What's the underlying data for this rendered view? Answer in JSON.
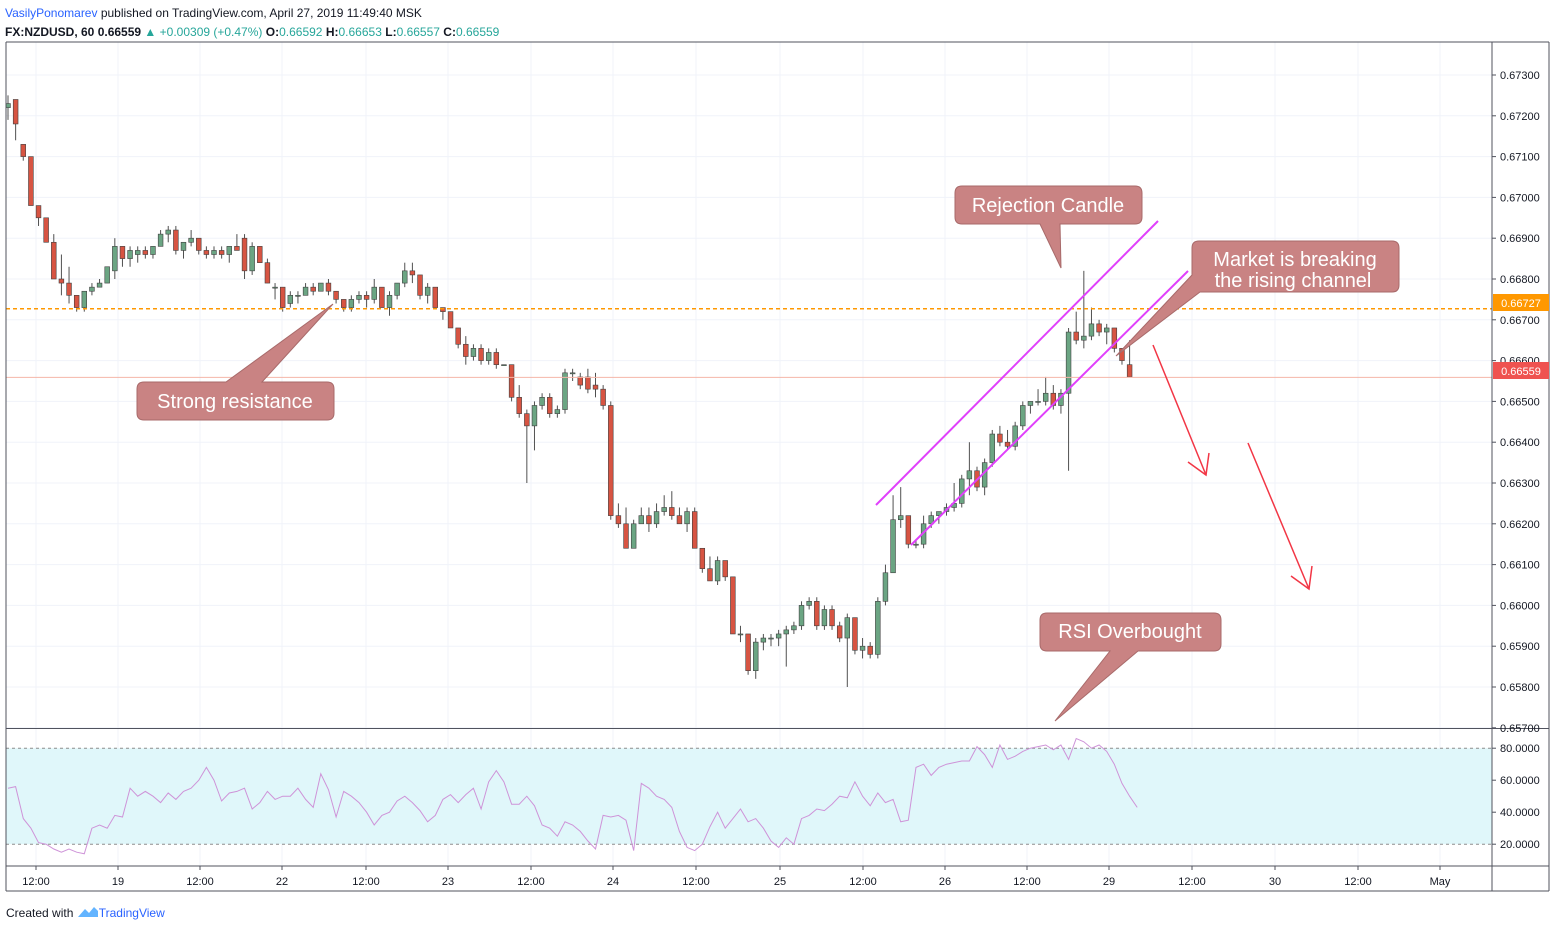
{
  "header": {
    "user": "VasilyPonomarev",
    "published_text": " published on TradingView.com, April 27, 2019 11:49:40 MSK",
    "symbol": "FX:NZDUSD, 60",
    "last": "0.66559",
    "change": "+0.00309 (+0.47%)",
    "o_label": "O:",
    "o_value": "0.66592",
    "h_label": "H:",
    "h_value": "0.66653",
    "l_label": "L:",
    "l_value": "0.66557",
    "c_label": "C:",
    "c_value": "0.66559"
  },
  "footer": {
    "created_with": "Created with",
    "brand": "TradingView"
  },
  "colors": {
    "up_candle": "#6ba583",
    "down_candle": "#d75442",
    "channel": "#e040fb",
    "resistance": "#ff9800",
    "arrow": "#f23645",
    "callout_fill": "#c98383",
    "rsi_line": "#ce93d8",
    "rsi_band": "#e0f7fa"
  },
  "annotations": {
    "strong_resistance": "Strong resistance",
    "rejection_candle": "Rejection Candle",
    "market_breaking_1": "Market is breaking",
    "market_breaking_2": "the rising channel",
    "rsi_overbought": "RSI Overbought"
  },
  "price_tags": {
    "resistance": "0.66727",
    "last": "0.66559"
  },
  "chart_data": [
    {
      "type": "candlestick",
      "title": "FX:NZDUSD, 60",
      "ylim": [
        0.6566,
        0.6736
      ],
      "y_ticks": [
        "0.67300",
        "0.67200",
        "0.67100",
        "0.67000",
        "0.66900",
        "0.66800",
        "0.66700",
        "0.66600",
        "0.66500",
        "0.66400",
        "0.66300",
        "0.66200",
        "0.66100",
        "0.66000",
        "0.65900",
        "0.65800",
        "0.65700"
      ],
      "y_tick_values": [
        0.673,
        0.672,
        0.671,
        0.67,
        0.669,
        0.668,
        0.667,
        0.666,
        0.665,
        0.664,
        0.663,
        0.662,
        0.661,
        0.66,
        0.659,
        0.658,
        0.657
      ],
      "x_ticks": [
        "12:00",
        "19",
        "12:00",
        "22",
        "12:00",
        "23",
        "12:00",
        "24",
        "12:00",
        "25",
        "12:00",
        "26",
        "12:00",
        "29",
        "12:00",
        "30",
        "12:00",
        "May"
      ],
      "resistance_level": 0.66727,
      "last_price": 0.66559,
      "candles": [
        [
          0.6722,
          0.6725,
          0.6719,
          0.6723
        ],
        [
          0.6724,
          0.6724,
          0.6714,
          0.6718
        ],
        [
          0.6713,
          0.6713,
          0.6709,
          0.671
        ],
        [
          0.671,
          0.671,
          0.6698,
          0.6698
        ],
        [
          0.6698,
          0.6698,
          0.6693,
          0.6695
        ],
        [
          0.6695,
          0.6695,
          0.6689,
          0.6689
        ],
        [
          0.6689,
          0.6691,
          0.668,
          0.668
        ],
        [
          0.668,
          0.6686,
          0.6676,
          0.6679
        ],
        [
          0.6679,
          0.6683,
          0.6674,
          0.6676
        ],
        [
          0.6676,
          0.6676,
          0.6672,
          0.6673
        ],
        [
          0.6673,
          0.6677,
          0.6672,
          0.6677
        ],
        [
          0.6677,
          0.6679,
          0.6676,
          0.6678
        ],
        [
          0.6678,
          0.668,
          0.6678,
          0.6679
        ],
        [
          0.6679,
          0.6683,
          0.6679,
          0.6683
        ],
        [
          0.6682,
          0.669,
          0.668,
          0.6688
        ],
        [
          0.6688,
          0.6688,
          0.6683,
          0.6685
        ],
        [
          0.6685,
          0.6688,
          0.6683,
          0.6687
        ],
        [
          0.6686,
          0.6688,
          0.6684,
          0.6687
        ],
        [
          0.6687,
          0.6688,
          0.6685,
          0.6686
        ],
        [
          0.6686,
          0.6688,
          0.6685,
          0.6688
        ],
        [
          0.6688,
          0.6692,
          0.6688,
          0.6691
        ],
        [
          0.6691,
          0.6693,
          0.6689,
          0.6692
        ],
        [
          0.6692,
          0.6693,
          0.6686,
          0.6687
        ],
        [
          0.6687,
          0.6689,
          0.6685,
          0.6689
        ],
        [
          0.6689,
          0.6692,
          0.6688,
          0.669
        ],
        [
          0.669,
          0.669,
          0.6686,
          0.6687
        ],
        [
          0.6687,
          0.6688,
          0.6685,
          0.6686
        ],
        [
          0.6686,
          0.6688,
          0.6685,
          0.6687
        ],
        [
          0.6687,
          0.6688,
          0.6685,
          0.6686
        ],
        [
          0.6686,
          0.6688,
          0.6684,
          0.6688
        ],
        [
          0.6688,
          0.6691,
          0.6687,
          0.6687
        ],
        [
          0.669,
          0.6691,
          0.668,
          0.6682
        ],
        [
          0.6682,
          0.6689,
          0.6681,
          0.6688
        ],
        [
          0.6688,
          0.6688,
          0.6684,
          0.6684
        ],
        [
          0.6684,
          0.6685,
          0.6679,
          0.6679
        ],
        [
          0.6678,
          0.6679,
          0.6675,
          0.6678
        ],
        [
          0.6678,
          0.6678,
          0.6672,
          0.6673
        ],
        [
          0.6674,
          0.6677,
          0.6673,
          0.6676
        ],
        [
          0.6676,
          0.6677,
          0.6674,
          0.6676
        ],
        [
          0.6676,
          0.6679,
          0.6676,
          0.6678
        ],
        [
          0.6678,
          0.6679,
          0.6676,
          0.6677
        ],
        [
          0.6677,
          0.6679,
          0.6677,
          0.6679
        ],
        [
          0.6679,
          0.668,
          0.6676,
          0.6677
        ],
        [
          0.6677,
          0.6677,
          0.6674,
          0.6675
        ],
        [
          0.6675,
          0.6675,
          0.6672,
          0.6673
        ],
        [
          0.6673,
          0.6676,
          0.6672,
          0.6675
        ],
        [
          0.6675,
          0.6677,
          0.6674,
          0.6676
        ],
        [
          0.6676,
          0.6677,
          0.6673,
          0.6675
        ],
        [
          0.6675,
          0.668,
          0.6674,
          0.6678
        ],
        [
          0.6678,
          0.6678,
          0.6673,
          0.6673
        ],
        [
          0.6673,
          0.6677,
          0.6671,
          0.6676
        ],
        [
          0.6676,
          0.6679,
          0.6675,
          0.6679
        ],
        [
          0.6679,
          0.6684,
          0.6678,
          0.6682
        ],
        [
          0.6682,
          0.6684,
          0.6679,
          0.6681
        ],
        [
          0.6681,
          0.6681,
          0.6675,
          0.6676
        ],
        [
          0.6676,
          0.6679,
          0.6674,
          0.6678
        ],
        [
          0.6678,
          0.6678,
          0.6673,
          0.6673
        ],
        [
          0.6673,
          0.6673,
          0.667,
          0.6672
        ],
        [
          0.6672,
          0.6672,
          0.6668,
          0.6668
        ],
        [
          0.6668,
          0.6668,
          0.6663,
          0.6664
        ],
        [
          0.6664,
          0.6666,
          0.6659,
          0.6661
        ],
        [
          0.6661,
          0.6664,
          0.666,
          0.6663
        ],
        [
          0.6663,
          0.6664,
          0.6659,
          0.666
        ],
        [
          0.666,
          0.6663,
          0.6659,
          0.6662
        ],
        [
          0.6662,
          0.6663,
          0.6658,
          0.6659
        ],
        [
          0.6659,
          0.6659,
          0.6659,
          0.6659
        ],
        [
          0.6659,
          0.6659,
          0.665,
          0.6651
        ],
        [
          0.6651,
          0.6654,
          0.6646,
          0.6647
        ],
        [
          0.6647,
          0.6648,
          0.663,
          0.6644
        ],
        [
          0.6644,
          0.665,
          0.6638,
          0.6649
        ],
        [
          0.6649,
          0.6652,
          0.6648,
          0.6651
        ],
        [
          0.6651,
          0.6652,
          0.6646,
          0.6647
        ],
        [
          0.6647,
          0.6649,
          0.6646,
          0.6648
        ],
        [
          0.6648,
          0.6658,
          0.6647,
          0.6657
        ],
        [
          0.6657,
          0.6658,
          0.6655,
          0.6657
        ],
        [
          0.6656,
          0.6657,
          0.6653,
          0.6654
        ],
        [
          0.6656,
          0.6658,
          0.6652,
          0.6653
        ],
        [
          0.6654,
          0.6657,
          0.6651,
          0.6653
        ],
        [
          0.6653,
          0.6654,
          0.6648,
          0.6649
        ],
        [
          0.6649,
          0.665,
          0.6621,
          0.6622
        ],
        [
          0.6622,
          0.6625,
          0.6619,
          0.662
        ],
        [
          0.662,
          0.6624,
          0.6614,
          0.6614
        ],
        [
          0.6614,
          0.6621,
          0.6614,
          0.662
        ],
        [
          0.662,
          0.6624,
          0.662,
          0.6622
        ],
        [
          0.6622,
          0.6624,
          0.6618,
          0.662
        ],
        [
          0.662,
          0.6625,
          0.6619,
          0.6623
        ],
        [
          0.6623,
          0.6627,
          0.6622,
          0.6624
        ],
        [
          0.6624,
          0.6628,
          0.6621,
          0.6622
        ],
        [
          0.6622,
          0.6624,
          0.662,
          0.662
        ],
        [
          0.662,
          0.6624,
          0.6618,
          0.6623
        ],
        [
          0.6623,
          0.6624,
          0.6614,
          0.6614
        ],
        [
          0.6614,
          0.6614,
          0.6608,
          0.6609
        ],
        [
          0.6609,
          0.6612,
          0.6606,
          0.6606
        ],
        [
          0.6606,
          0.6612,
          0.6605,
          0.6611
        ],
        [
          0.6611,
          0.6611,
          0.6606,
          0.6607
        ],
        [
          0.6607,
          0.6607,
          0.6593,
          0.6593
        ],
        [
          0.6593,
          0.6595,
          0.6591,
          0.6593
        ],
        [
          0.6593,
          0.6593,
          0.6583,
          0.6584
        ],
        [
          0.6584,
          0.6592,
          0.6582,
          0.6591
        ],
        [
          0.6591,
          0.6593,
          0.6589,
          0.6592
        ],
        [
          0.6592,
          0.6593,
          0.659,
          0.6592
        ],
        [
          0.6592,
          0.6594,
          0.659,
          0.6593
        ],
        [
          0.6593,
          0.6595,
          0.6585,
          0.6594
        ],
        [
          0.6594,
          0.6596,
          0.6593,
          0.6595
        ],
        [
          0.6595,
          0.6601,
          0.6594,
          0.66
        ],
        [
          0.66,
          0.6602,
          0.6599,
          0.6601
        ],
        [
          0.6601,
          0.6602,
          0.6594,
          0.6595
        ],
        [
          0.6595,
          0.66,
          0.6594,
          0.6599
        ],
        [
          0.6599,
          0.66,
          0.6594,
          0.6595
        ],
        [
          0.6595,
          0.6596,
          0.6591,
          0.6592
        ],
        [
          0.6592,
          0.6598,
          0.658,
          0.6597
        ],
        [
          0.6597,
          0.6597,
          0.6588,
          0.6589
        ],
        [
          0.6589,
          0.6592,
          0.6587,
          0.659
        ],
        [
          0.659,
          0.6591,
          0.6587,
          0.6588
        ],
        [
          0.6588,
          0.6602,
          0.6587,
          0.6601
        ],
        [
          0.6601,
          0.661,
          0.66,
          0.6608
        ],
        [
          0.6608,
          0.6627,
          0.6608,
          0.6621
        ],
        [
          0.6621,
          0.6629,
          0.6619,
          0.6622
        ],
        [
          0.6622,
          0.6622,
          0.6614,
          0.6615
        ],
        [
          0.6615,
          0.6616,
          0.6614,
          0.6615
        ],
        [
          0.6615,
          0.6622,
          0.6614,
          0.662
        ],
        [
          0.662,
          0.6623,
          0.6619,
          0.6622
        ],
        [
          0.6622,
          0.6623,
          0.662,
          0.6623
        ],
        [
          0.6623,
          0.6625,
          0.6622,
          0.6624
        ],
        [
          0.6624,
          0.663,
          0.6623,
          0.6625
        ],
        [
          0.6625,
          0.6632,
          0.6624,
          0.6631
        ],
        [
          0.6631,
          0.664,
          0.6627,
          0.6633
        ],
        [
          0.6633,
          0.6634,
          0.6628,
          0.6629
        ],
        [
          0.6629,
          0.6636,
          0.6627,
          0.6635
        ],
        [
          0.6635,
          0.6643,
          0.6634,
          0.6642
        ],
        [
          0.6642,
          0.6644,
          0.6639,
          0.664
        ],
        [
          0.664,
          0.6643,
          0.6638,
          0.6639
        ],
        [
          0.6639,
          0.6645,
          0.6638,
          0.6644
        ],
        [
          0.6644,
          0.665,
          0.6643,
          0.6649
        ],
        [
          0.6649,
          0.665,
          0.6647,
          0.665
        ],
        [
          0.665,
          0.6653,
          0.6649,
          0.665
        ],
        [
          0.665,
          0.6656,
          0.6649,
          0.6652
        ],
        [
          0.6652,
          0.6654,
          0.6648,
          0.6649
        ],
        [
          0.6649,
          0.6653,
          0.6647,
          0.6652
        ],
        [
          0.6652,
          0.6668,
          0.6633,
          0.6667
        ],
        [
          0.6667,
          0.6672,
          0.6664,
          0.6665
        ],
        [
          0.6665,
          0.6682,
          0.6663,
          0.6666
        ],
        [
          0.6666,
          0.6673,
          0.6665,
          0.6669
        ],
        [
          0.6669,
          0.667,
          0.6666,
          0.6667
        ],
        [
          0.6667,
          0.6669,
          0.6664,
          0.6668
        ],
        [
          0.6668,
          0.6668,
          0.6662,
          0.6663
        ],
        [
          0.6663,
          0.6663,
          0.6659,
          0.666
        ],
        [
          0.6659,
          0.6665,
          0.6656,
          0.6656
        ]
      ]
    },
    {
      "type": "line",
      "title": "RSI",
      "ylim": [
        12,
        86
      ],
      "y_ticks": [
        "80.0000",
        "60.0000",
        "40.0000",
        "20.0000"
      ],
      "y_tick_values": [
        80,
        60,
        40,
        20
      ],
      "band": [
        20,
        80
      ],
      "values": [
        55,
        56,
        36,
        30,
        21,
        20,
        17,
        15,
        17,
        15,
        14,
        30,
        32,
        30,
        38,
        37,
        55,
        50,
        53,
        50,
        46,
        52,
        48,
        53,
        55,
        60,
        68,
        60,
        47,
        52,
        53,
        55,
        42,
        46,
        53,
        48,
        50,
        50,
        55,
        48,
        43,
        64,
        54,
        37,
        53,
        50,
        46,
        40,
        32,
        38,
        40,
        47,
        50,
        46,
        41,
        34,
        38,
        48,
        51,
        46,
        51,
        55,
        42,
        59,
        66,
        59,
        45,
        45,
        50,
        44,
        32,
        30,
        25,
        34,
        32,
        28,
        22,
        17,
        38,
        37,
        38,
        35,
        16,
        58,
        55,
        50,
        48,
        43,
        28,
        18,
        16,
        20,
        31,
        40,
        30,
        36,
        42,
        34,
        36,
        30,
        22,
        18,
        24,
        20,
        36,
        38,
        42,
        41,
        45,
        50,
        49,
        59,
        50,
        44,
        52,
        46,
        48,
        34,
        35,
        68,
        70,
        63,
        68,
        70,
        71,
        72,
        72,
        81,
        76,
        68,
        82,
        73,
        75,
        78,
        80,
        81,
        82,
        79,
        82,
        73,
        86,
        84,
        80,
        82,
        78,
        70,
        58,
        50,
        43
      ]
    }
  ]
}
